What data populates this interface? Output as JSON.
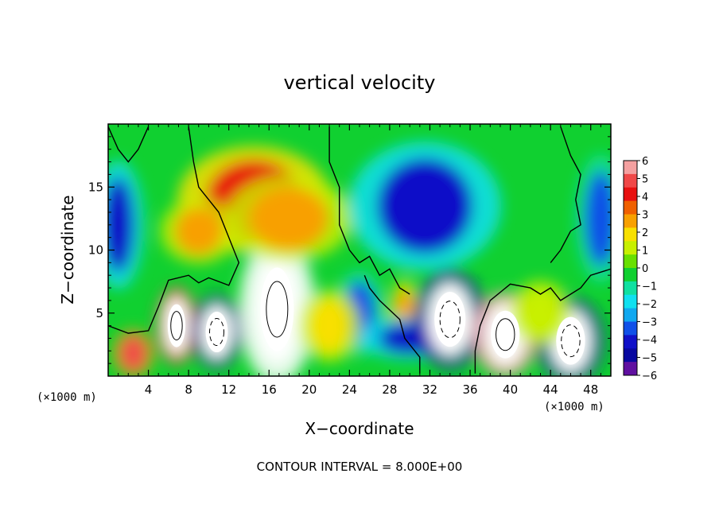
{
  "chart_data": {
    "type": "heatmap",
    "title": "vertical velocity",
    "xlabel": "X−coordinate",
    "ylabel": "Z−coordinate",
    "x_unit_left": "(×1000 m)",
    "x_unit_right": "(×1000 m)",
    "xlim": [
      0,
      50
    ],
    "ylim": [
      0,
      20
    ],
    "x_ticks": [
      4,
      8,
      12,
      16,
      20,
      24,
      28,
      32,
      36,
      40,
      44,
      48
    ],
    "y_ticks": [
      5,
      10,
      15
    ],
    "contour_interval_label": "CONTOUR INTERVAL = 8.000E+00",
    "colorbar": {
      "min": -6,
      "max": 6,
      "ticks": [
        6,
        5,
        4,
        3,
        2,
        1,
        0,
        -1,
        -2,
        -3,
        -4,
        -5,
        -6
      ],
      "tick_labels": [
        "6",
        "5",
        "4",
        "3",
        "2",
        "1",
        "0",
        "−1",
        "−2",
        "−3",
        "−4",
        "−5",
        "−6"
      ],
      "colors": [
        "#f4a0a0",
        "#f04848",
        "#e81010",
        "#f06000",
        "#f8a000",
        "#f8e000",
        "#c8f000",
        "#68e000",
        "#10d030",
        "#10e0a0",
        "#10e0f0",
        "#10a8f0",
        "#1050e8",
        "#1010c8",
        "#0808a0",
        "#6010a0"
      ]
    },
    "features": [
      {
        "x": 2.5,
        "z": 1.8,
        "value": 5
      },
      {
        "x": 6.8,
        "z": 4.0,
        "value": 7
      },
      {
        "x": 10.8,
        "z": 3.5,
        "value": -7
      },
      {
        "x": 16.8,
        "z": 5.3,
        "value": 9
      },
      {
        "x": 14.5,
        "z": 14.0,
        "value": 4
      },
      {
        "x": 18.0,
        "z": 12.5,
        "value": 3
      },
      {
        "x": 9.0,
        "z": 11.5,
        "value": 3
      },
      {
        "x": 25.0,
        "z": 5.0,
        "value": -3
      },
      {
        "x": 29.5,
        "z": 5.0,
        "value": 3
      },
      {
        "x": 31.5,
        "z": 13.5,
        "value": -4
      },
      {
        "x": 30.0,
        "z": 3.0,
        "value": -4
      },
      {
        "x": 34.0,
        "z": 4.5,
        "value": -7
      },
      {
        "x": 39.5,
        "z": 3.3,
        "value": 8
      },
      {
        "x": 46.0,
        "z": 2.8,
        "value": -7
      },
      {
        "x": 1.0,
        "z": 12.0,
        "value": -4
      },
      {
        "x": 49.0,
        "z": 12.5,
        "value": -3
      },
      {
        "x": 22.0,
        "z": 4.0,
        "value": 2
      },
      {
        "x": 43.0,
        "z": 5.0,
        "value": 1
      }
    ]
  }
}
